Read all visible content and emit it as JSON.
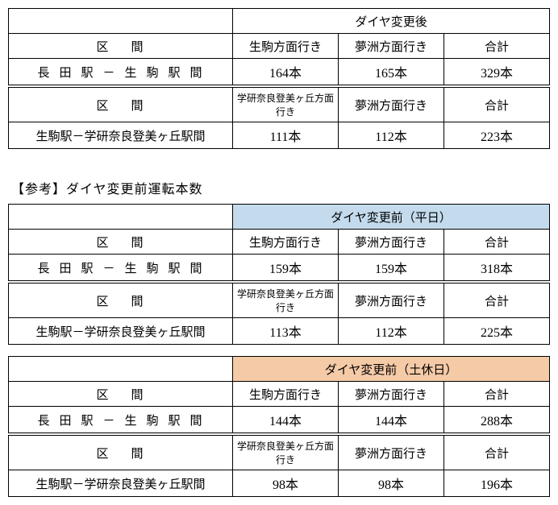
{
  "labels": {
    "section": "区間",
    "total": "合計",
    "ikoma_dir": "生駒方面行き",
    "yumeshima_dir": "夢洲方面行き",
    "gakken_dir": "学研奈良登美ヶ丘方面行き",
    "route1": "長田駅－生駒駅間",
    "route2": "生駒駅－学研奈良登美ヶ丘駅間",
    "after": "ダイヤ変更後",
    "ref_title": "【参考】ダイヤ変更前運転本数",
    "before_weekday": "ダイヤ変更前（平日）",
    "before_holiday": "ダイヤ変更前（土休日）"
  },
  "colors": {
    "weekday_bg": "#c3dbec",
    "holiday_bg": "#f5caa7"
  },
  "tables": {
    "after": {
      "r1": {
        "a": "164本",
        "b": "165本",
        "t": "329本"
      },
      "r2": {
        "a": "111本",
        "b": "112本",
        "t": "223本"
      }
    },
    "before_wd": {
      "r1": {
        "a": "159本",
        "b": "159本",
        "t": "318本"
      },
      "r2": {
        "a": "113本",
        "b": "112本",
        "t": "225本"
      }
    },
    "before_hd": {
      "r1": {
        "a": "144本",
        "b": "144本",
        "t": "288本"
      },
      "r2": {
        "a": "98本",
        "b": "98本",
        "t": "196本"
      }
    }
  }
}
